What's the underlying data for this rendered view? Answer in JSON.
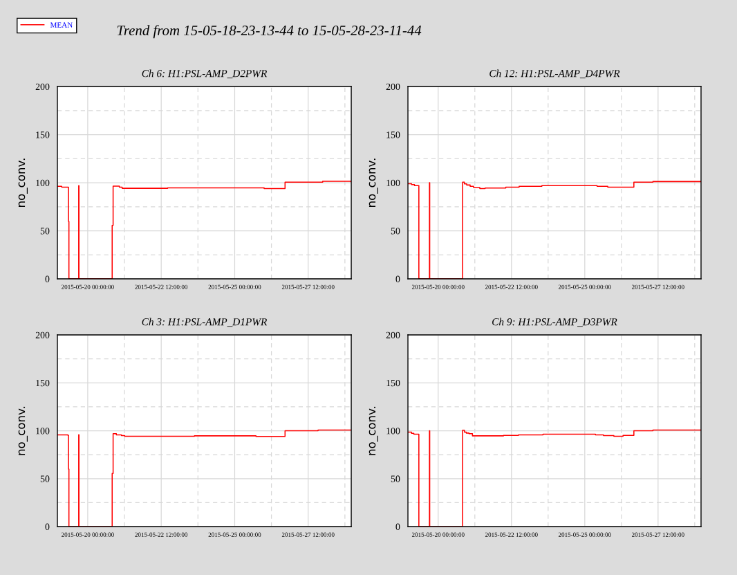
{
  "chart_data": [
    {
      "type": "step",
      "title": "Ch 6: H1:PSL-AMP_D2PWR",
      "ylabel": "no_conv.",
      "annotations": [
        "Trend from 15-05-18-23-13-44 to 15-05-28-23-11-44"
      ],
      "legend": "top left",
      "grid": true,
      "xlim": [
        "2015-05-18T23:14",
        "2015-05-28T23:11"
      ],
      "ylim": [
        0,
        200
      ],
      "yticks": [
        0,
        50,
        100,
        150,
        200
      ],
      "xticks": [
        {
          "value": "2015-05-20T00:00",
          "label": "2015-05-20 00:00:00"
        },
        {
          "value": "2015-05-22T12:00",
          "label": "2015-05-22 12:00:00"
        },
        {
          "value": "2015-05-25T00:00",
          "label": "2015-05-25 00:00:00"
        },
        {
          "value": "2015-05-27T12:00",
          "label": "2015-05-27 12:00:00"
        }
      ],
      "series": [
        {
          "name": "MEAN",
          "color": "#ff0000",
          "x": [
            "2015-05-18T23:14",
            "2015-05-19T02:45",
            "2015-05-19T08:17",
            "2015-05-19T08:38",
            "2015-05-19T16:37",
            "2015-05-19T16:50",
            "2015-05-20T19:57",
            "2015-05-20T20:43",
            "2015-05-21T01:49",
            "2015-05-21T04:05",
            "2015-05-22T17:18",
            "2015-05-26T00:03",
            "2015-05-26T17:07",
            "2015-05-27T23:51",
            "2015-05-28T23:11"
          ],
          "values": [
            96.2,
            95.4,
            59.7,
            0,
            97,
            0,
            55.6,
            96.4,
            95.4,
            94.2,
            94.7,
            94.0,
            100.5,
            101.5,
            101.0
          ]
        }
      ]
    },
    {
      "type": "step",
      "title": "Ch 12: H1:PSL-AMP_D4PWR",
      "ylabel": "no_conv.",
      "grid": true,
      "xlim": [
        "2015-05-18T23:14",
        "2015-05-28T23:11"
      ],
      "ylim": [
        0,
        200
      ],
      "yticks": [
        0,
        50,
        100,
        150,
        200
      ],
      "xticks": [
        {
          "value": "2015-05-20T00:00",
          "label": "2015-05-20 00:00:00"
        },
        {
          "value": "2015-05-22T12:00",
          "label": "2015-05-22 12:00:00"
        },
        {
          "value": "2015-05-25T00:00",
          "label": "2015-05-25 00:00:00"
        },
        {
          "value": "2015-05-27T12:00",
          "label": "2015-05-27 12:00:00"
        }
      ],
      "series": [
        {
          "color": "#ff0000",
          "x": [
            "2015-05-18T23:14",
            "2015-05-19T02:10",
            "2015-05-19T04:36",
            "2015-05-19T08:11",
            "2015-05-19T16:51",
            "2015-05-19T17:04",
            "2015-05-20T19:57",
            "2015-05-20T21:28",
            "2015-05-20T23:21",
            "2015-05-21T02:10",
            "2015-05-21T04:59",
            "2015-05-21T10:05",
            "2015-05-21T14:24",
            "2015-05-22T07:20",
            "2015-05-22T18:16",
            "2015-05-23T12:53",
            "2015-05-25T10:05",
            "2015-05-25T18:49",
            "2015-05-26T16:12",
            "2015-05-27T07:48",
            "2015-05-28T23:11"
          ],
          "values": [
            99.0,
            98.1,
            96.9,
            0,
            100,
            0,
            100.5,
            98.8,
            97.6,
            96.2,
            95.0,
            94.0,
            94.5,
            95.4,
            96.2,
            96.9,
            96.2,
            95.4,
            100.5,
            101.2,
            101.2
          ]
        }
      ]
    },
    {
      "type": "step",
      "title": "Ch 3: H1:PSL-AMP_D1PWR",
      "ylabel": "no_conv.",
      "grid": true,
      "xlim": [
        "2015-05-18T23:14",
        "2015-05-28T23:11"
      ],
      "ylim": [
        0,
        200
      ],
      "yticks": [
        0,
        50,
        100,
        150,
        200
      ],
      "xticks": [
        {
          "value": "2015-05-20T00:00",
          "label": "2015-05-20 00:00:00"
        },
        {
          "value": "2015-05-22T12:00",
          "label": "2015-05-22 12:00:00"
        },
        {
          "value": "2015-05-25T00:00",
          "label": "2015-05-25 00:00:00"
        },
        {
          "value": "2015-05-27T12:00",
          "label": "2015-05-27 12:00:00"
        }
      ],
      "series": [
        {
          "color": "#ff0000",
          "x": [
            "2015-05-18T23:14",
            "2015-05-19T07:54",
            "2015-05-19T08:17",
            "2015-05-19T08:38",
            "2015-05-19T16:37",
            "2015-05-19T16:50",
            "2015-05-20T19:57",
            "2015-05-20T20:43",
            "2015-05-20T23:21",
            "2015-05-21T03:32",
            "2015-05-21T06:11",
            "2015-05-23T15:07",
            "2015-05-25T17:24",
            "2015-05-26T17:07",
            "2015-05-27T20:04",
            "2015-05-28T23:11"
          ],
          "values": [
            95.7,
            95.2,
            59.9,
            0,
            95.9,
            0,
            55.5,
            96.9,
            95.7,
            95.0,
            94.2,
            94.7,
            94.0,
            100,
            100.7,
            100.7
          ]
        }
      ]
    },
    {
      "type": "step",
      "title": "Ch 9: H1:PSL-AMP_D3PWR",
      "ylabel": "no_conv.",
      "grid": true,
      "xlim": [
        "2015-05-18T23:14",
        "2015-05-28T23:11"
      ],
      "ylim": [
        0,
        200
      ],
      "yticks": [
        0,
        50,
        100,
        150,
        200
      ],
      "xticks": [
        {
          "value": "2015-05-20T00:00",
          "label": "2015-05-20 00:00:00"
        },
        {
          "value": "2015-05-22T12:00",
          "label": "2015-05-22 12:00:00"
        },
        {
          "value": "2015-05-25T00:00",
          "label": "2015-05-25 00:00:00"
        },
        {
          "value": "2015-05-27T12:00",
          "label": "2015-05-27 12:00:00"
        }
      ],
      "series": [
        {
          "color": "#ff0000",
          "x": [
            "2015-05-18T23:14",
            "2015-05-19T02:10",
            "2015-05-19T04:03",
            "2015-05-19T08:11",
            "2015-05-19T16:51",
            "2015-05-19T17:04",
            "2015-05-20T19:57",
            "2015-05-20T21:28",
            "2015-05-20T22:58",
            "2015-05-21T01:13",
            "2015-05-21T04:03",
            "2015-05-22T05:27",
            "2015-05-22T17:41",
            "2015-05-23T13:49",
            "2015-05-25T08:46",
            "2015-05-25T15:20",
            "2015-05-25T23:49",
            "2015-05-26T07:21",
            "2015-05-26T16:12",
            "2015-05-27T07:48",
            "2015-05-28T23:11"
          ],
          "values": [
            98.6,
            97.4,
            96.4,
            0,
            100,
            0,
            100.5,
            98.6,
            97.6,
            96.9,
            94.7,
            95.2,
            95.7,
            96.4,
            95.7,
            95.0,
            94.2,
            95.2,
            100,
            100.7,
            100.7
          ]
        }
      ]
    }
  ]
}
